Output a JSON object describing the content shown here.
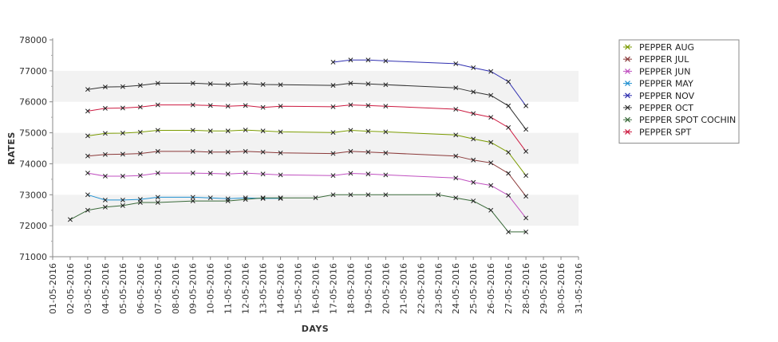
{
  "chart_data": {
    "type": "line",
    "title": "",
    "xlabel": "DAYS",
    "ylabel": "RATES",
    "ylim": [
      71000,
      78000
    ],
    "y_ticks": [
      71000,
      72000,
      73000,
      74000,
      75000,
      76000,
      77000,
      78000
    ],
    "y_tick_labels": [
      "71000",
      "72000",
      "73000",
      "74000",
      "75000",
      "76000",
      "77000",
      "78000"
    ],
    "x_day_range": [
      1,
      31
    ],
    "x_tick_labels": [
      "01-05-2016",
      "02-05-2016",
      "03-05-2016",
      "04-05-2016",
      "05-05-2016",
      "06-05-2016",
      "07-05-2016",
      "08-05-2016",
      "09-05-2016",
      "10-05-2016",
      "11-05-2016",
      "12-05-2016",
      "13-05-2016",
      "14-05-2016",
      "15-05-2016",
      "16-05-2016",
      "17-05-2016",
      "18-05-2016",
      "19-05-2016",
      "20-05-2016",
      "21-05-2016",
      "22-05-2016",
      "23-05-2016",
      "24-05-2016",
      "25-05-2016",
      "26-05-2016",
      "27-05-2016",
      "28-05-2016",
      "29-05-2016",
      "30-05-2016",
      "31-05-2016"
    ],
    "grid": "alternating horizontal bands",
    "legend_position": "right",
    "marker": "x",
    "series": [
      {
        "name": "PEPPER AUG",
        "color": "#7a9a00",
        "points": [
          [
            3,
            74900
          ],
          [
            4,
            74980
          ],
          [
            5,
            74990
          ],
          [
            6,
            75020
          ],
          [
            7,
            75080
          ],
          [
            9,
            75080
          ],
          [
            10,
            75060
          ],
          [
            11,
            75060
          ],
          [
            12,
            75090
          ],
          [
            13,
            75060
          ],
          [
            14,
            75030
          ],
          [
            17,
            75010
          ],
          [
            18,
            75080
          ],
          [
            19,
            75050
          ],
          [
            20,
            75030
          ],
          [
            24,
            74930
          ],
          [
            25,
            74800
          ],
          [
            26,
            74690
          ],
          [
            27,
            74370
          ],
          [
            28,
            73620
          ]
        ]
      },
      {
        "name": "PEPPER JUL",
        "color": "#8b3a3a",
        "points": [
          [
            3,
            74250
          ],
          [
            4,
            74300
          ],
          [
            5,
            74310
          ],
          [
            6,
            74330
          ],
          [
            7,
            74400
          ],
          [
            9,
            74400
          ],
          [
            10,
            74380
          ],
          [
            11,
            74380
          ],
          [
            12,
            74400
          ],
          [
            13,
            74380
          ],
          [
            14,
            74350
          ],
          [
            17,
            74330
          ],
          [
            18,
            74400
          ],
          [
            19,
            74380
          ],
          [
            20,
            74350
          ],
          [
            24,
            74250
          ],
          [
            25,
            74120
          ],
          [
            26,
            74030
          ],
          [
            27,
            73690
          ],
          [
            28,
            72950
          ]
        ]
      },
      {
        "name": "PEPPER JUN",
        "color": "#c050c0",
        "points": [
          [
            3,
            73700
          ],
          [
            4,
            73600
          ],
          [
            5,
            73600
          ],
          [
            6,
            73620
          ],
          [
            7,
            73700
          ],
          [
            9,
            73700
          ],
          [
            10,
            73690
          ],
          [
            11,
            73670
          ],
          [
            12,
            73700
          ],
          [
            13,
            73670
          ],
          [
            14,
            73640
          ],
          [
            17,
            73620
          ],
          [
            18,
            73690
          ],
          [
            19,
            73670
          ],
          [
            20,
            73640
          ],
          [
            24,
            73540
          ],
          [
            25,
            73400
          ],
          [
            26,
            73300
          ],
          [
            27,
            72980
          ],
          [
            28,
            72250
          ]
        ]
      },
      {
        "name": "PEPPER MAY",
        "color": "#2090d0",
        "points": [
          [
            3,
            73000
          ],
          [
            4,
            72830
          ],
          [
            5,
            72830
          ],
          [
            6,
            72850
          ],
          [
            7,
            72920
          ],
          [
            9,
            72920
          ],
          [
            10,
            72900
          ],
          [
            11,
            72870
          ],
          [
            12,
            72900
          ],
          [
            13,
            72880
          ],
          [
            14,
            72880
          ]
        ]
      },
      {
        "name": "PEPPER NOV",
        "color": "#3030b0",
        "points": [
          [
            17,
            77280
          ],
          [
            18,
            77350
          ],
          [
            19,
            77350
          ],
          [
            20,
            77320
          ],
          [
            24,
            77230
          ],
          [
            25,
            77100
          ],
          [
            26,
            76980
          ],
          [
            27,
            76650
          ],
          [
            28,
            75870
          ]
        ]
      },
      {
        "name": "PEPPER OCT",
        "color": "#333333",
        "points": [
          [
            3,
            76400
          ],
          [
            4,
            76480
          ],
          [
            5,
            76490
          ],
          [
            6,
            76530
          ],
          [
            7,
            76600
          ],
          [
            9,
            76600
          ],
          [
            10,
            76580
          ],
          [
            11,
            76560
          ],
          [
            12,
            76590
          ],
          [
            13,
            76560
          ],
          [
            14,
            76550
          ],
          [
            17,
            76530
          ],
          [
            18,
            76600
          ],
          [
            19,
            76580
          ],
          [
            20,
            76550
          ],
          [
            24,
            76450
          ],
          [
            25,
            76320
          ],
          [
            26,
            76210
          ],
          [
            27,
            75870
          ],
          [
            28,
            75110
          ]
        ]
      },
      {
        "name": "PEPPER SPOT COCHIN",
        "color": "#3a6a3a",
        "points": [
          [
            2,
            72200
          ],
          [
            3,
            72500
          ],
          [
            4,
            72600
          ],
          [
            5,
            72650
          ],
          [
            6,
            72750
          ],
          [
            7,
            72750
          ],
          [
            9,
            72800
          ],
          [
            11,
            72800
          ],
          [
            12,
            72850
          ],
          [
            13,
            72900
          ],
          [
            14,
            72900
          ],
          [
            16,
            72900
          ],
          [
            17,
            73000
          ],
          [
            18,
            73000
          ],
          [
            19,
            73000
          ],
          [
            20,
            73000
          ],
          [
            23,
            73000
          ],
          [
            24,
            72900
          ],
          [
            25,
            72800
          ],
          [
            26,
            72500
          ],
          [
            27,
            71800
          ],
          [
            28,
            71800
          ]
        ]
      },
      {
        "name": "PEPPER SPT",
        "color": "#cc1a40",
        "points": [
          [
            3,
            75700
          ],
          [
            4,
            75790
          ],
          [
            5,
            75800
          ],
          [
            6,
            75830
          ],
          [
            7,
            75900
          ],
          [
            9,
            75900
          ],
          [
            10,
            75880
          ],
          [
            11,
            75860
          ],
          [
            12,
            75880
          ],
          [
            13,
            75820
          ],
          [
            14,
            75860
          ],
          [
            17,
            75840
          ],
          [
            18,
            75900
          ],
          [
            19,
            75880
          ],
          [
            20,
            75860
          ],
          [
            24,
            75760
          ],
          [
            25,
            75620
          ],
          [
            26,
            75500
          ],
          [
            27,
            75170
          ],
          [
            28,
            74400
          ]
        ]
      }
    ]
  }
}
